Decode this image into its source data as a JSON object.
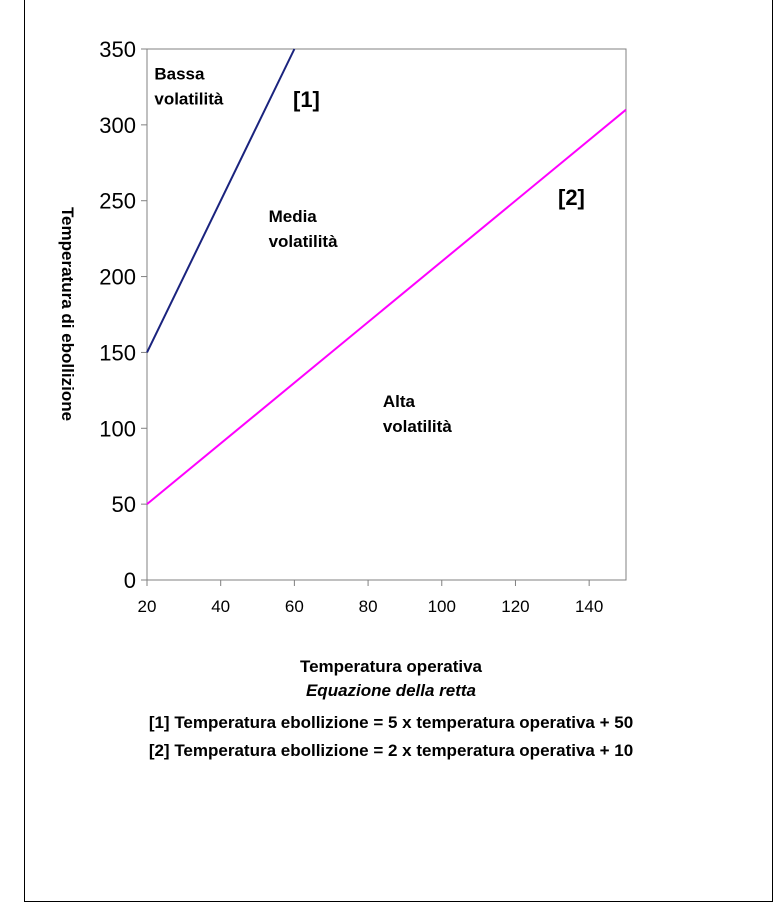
{
  "chart_data": {
    "type": "line",
    "xlabel": "Temperatura operativa",
    "ylabel": "Temperatura di ebollizione",
    "xlim": [
      20,
      150
    ],
    "ylim": [
      0,
      350
    ],
    "x_ticks": [
      20,
      40,
      60,
      80,
      100,
      120,
      140
    ],
    "y_ticks": [
      0,
      50,
      100,
      150,
      200,
      250,
      300,
      350
    ],
    "grid": false,
    "series": [
      {
        "name": "[1]",
        "color": "#1a237e",
        "x": [
          20,
          60
        ],
        "y": [
          150,
          350
        ]
      },
      {
        "name": "[2]",
        "color": "#ff00ff",
        "x": [
          20,
          150
        ],
        "y": [
          50,
          310
        ]
      }
    ],
    "annotations": [
      {
        "line1": "Bassa",
        "line2": "volatilità",
        "x": 22,
        "y": 330
      },
      {
        "line1": "Media",
        "line2": "volatilità",
        "x": 53,
        "y": 236
      },
      {
        "line1": "Alta",
        "line2": "volatilità",
        "x": 84,
        "y": 114
      }
    ]
  },
  "equations": {
    "heading": "Equazione della retta",
    "eq1": "[1]  Temperatura ebollizione = 5 x temperatura operativa + 50",
    "eq2": "[2]  Temperatura ebollizione = 2 x temperatura operativa + 10"
  }
}
